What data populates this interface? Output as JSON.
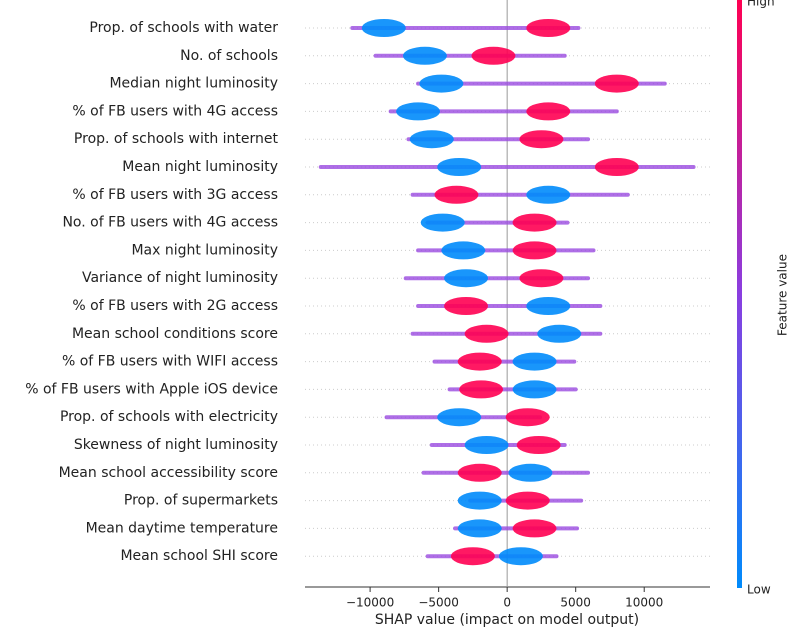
{
  "chart_data": {
    "type": "beeswarm",
    "xlabel": "SHAP value (impact on model output)",
    "colorbar": {
      "label": "Feature value",
      "high": "High",
      "low": "Low"
    },
    "categories": [
      "Prop. of schools with water",
      "No. of schools",
      "Median night luminosity",
      "% of FB users with 4G access",
      "Prop. of schools with internet",
      "Mean night luminosity",
      "% of FB users with 3G access",
      "No. of FB users with 4G access",
      "Max night luminosity",
      "Variance of night luminosity",
      "% of FB users with 2G access",
      "Mean school conditions score",
      "% of FB users with WIFI access",
      "% of FB users with Apple iOS device",
      "Prop. of schools with electricity",
      "Skewness of night luminosity",
      "Mean school accessibility score",
      "Prop. of supermarkets",
      "Mean daytime temperature",
      "Mean school SHI score"
    ],
    "min": [
      -11300,
      -9600,
      -6500,
      -8500,
      -7200,
      -13600,
      -6900,
      -5800,
      -6500,
      -7400,
      -6500,
      -6900,
      -5300,
      -4200,
      -8800,
      -5500,
      -6100,
      -2700,
      -3800,
      -5800
    ],
    "max": [
      5200,
      4200,
      11500,
      8000,
      5900,
      13600,
      8800,
      4400,
      6300,
      5900,
      6800,
      6800,
      4900,
      5000,
      2400,
      4200,
      5900,
      5400,
      5100,
      3600
    ],
    "series": [
      {
        "name": "Low",
        "color": "#008bfb",
        "values": [
          -9000,
          -6000,
          -4800,
          -6500,
          -5500,
          -3500,
          3000,
          -4700,
          -3200,
          -3000,
          3000,
          3800,
          2000,
          2000,
          -3500,
          -1500,
          1700,
          -2000,
          -2000,
          1000
        ]
      },
      {
        "name": "High",
        "color": "#ff0052",
        "values": [
          3000,
          -1000,
          8000,
          3000,
          2500,
          8000,
          -3700,
          2000,
          2000,
          2500,
          -3000,
          -1500,
          -2000,
          -1900,
          1500,
          2300,
          -2000,
          1500,
          2000,
          -2500
        ]
      }
    ],
    "xlim": [
      -14750,
      14800
    ],
    "xticks": [
      {
        "value": -10000,
        "label": "−10000"
      },
      {
        "value": -5000,
        "label": "−5000"
      },
      0,
      5000,
      10000
    ]
  }
}
